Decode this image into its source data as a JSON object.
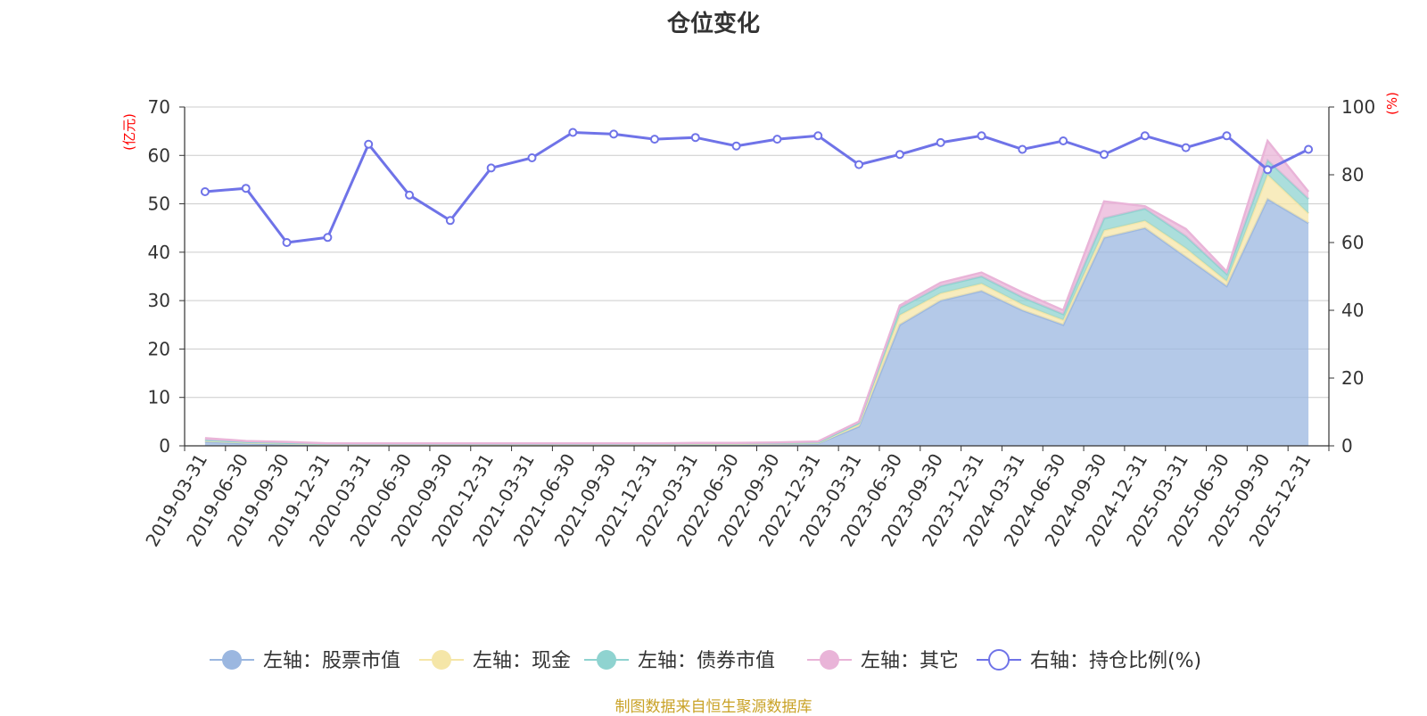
{
  "chart_data": {
    "type": "area",
    "title": "仓位变化",
    "left_axis_unit": "(亿元)",
    "right_axis_unit": "(%)",
    "ylim_left": [
      0,
      70
    ],
    "ylim_right": [
      0,
      100
    ],
    "yticks_left": [
      0,
      10,
      20,
      30,
      40,
      50,
      60,
      70
    ],
    "yticks_right": [
      0,
      20,
      40,
      60,
      80,
      100
    ],
    "grid": true,
    "legend_position": "bottom",
    "categories": [
      "2019-03-31",
      "2019-06-30",
      "2019-09-30",
      "2019-12-31",
      "2020-03-31",
      "2020-06-30",
      "2020-09-30",
      "2020-12-31",
      "2021-03-31",
      "2021-06-30",
      "2021-09-30",
      "2021-12-31",
      "2022-03-31",
      "2022-06-30",
      "2022-09-30",
      "2022-12-31",
      "2023-03-31",
      "2023-06-30",
      "2023-09-30",
      "2023-12-31",
      "2024-03-31",
      "2024-06-30",
      "2024-09-30",
      "2024-12-31",
      "2025-03-31",
      "2025-06-30",
      "2025-09-30",
      "2025-12-31"
    ],
    "series": [
      {
        "name": "左轴：股票市值",
        "axis": "left",
        "kind": "area",
        "color": "#9bb7e0",
        "values": [
          0.8,
          0.5,
          0.3,
          0.2,
          0.2,
          0.2,
          0.2,
          0.2,
          0.2,
          0.2,
          0.2,
          0.2,
          0.3,
          0.3,
          0.4,
          0.5,
          4,
          25,
          30,
          32,
          28,
          25,
          43,
          45,
          39,
          33,
          51,
          46
        ]
      },
      {
        "name": "左轴：现金",
        "axis": "left",
        "kind": "area",
        "color": "#f5e6a8",
        "values": [
          0.3,
          0.2,
          0.2,
          0.1,
          0.1,
          0.1,
          0.1,
          0.1,
          0.1,
          0.1,
          0.1,
          0.1,
          0.1,
          0.1,
          0.1,
          0.1,
          0.4,
          2,
          1.5,
          1.5,
          1.2,
          1.0,
          1.5,
          1.5,
          1.8,
          1.0,
          5,
          2
        ]
      },
      {
        "name": "左轴：债券市值",
        "axis": "left",
        "kind": "area",
        "color": "#8fd3d0",
        "values": [
          0.1,
          0.1,
          0.1,
          0.1,
          0.1,
          0.1,
          0.1,
          0.1,
          0.1,
          0.1,
          0.1,
          0.1,
          0.1,
          0.1,
          0.1,
          0.1,
          0.3,
          1.5,
          1.5,
          1.5,
          1.5,
          1.2,
          2.5,
          2.5,
          2.5,
          1.5,
          3,
          3
        ]
      },
      {
        "name": "左轴：其它",
        "axis": "left",
        "kind": "area",
        "color": "#e9b4d8",
        "values": [
          0.4,
          0.2,
          0.2,
          0.1,
          0.1,
          0.1,
          0.1,
          0.1,
          0.1,
          0.1,
          0.1,
          0.1,
          0.1,
          0.1,
          0.1,
          0.2,
          0.3,
          0.5,
          0.7,
          0.8,
          1.0,
          0.8,
          3.5,
          0.5,
          1.5,
          0.5,
          4,
          1.5
        ]
      },
      {
        "name": "右轴：持仓比例(%)",
        "axis": "right",
        "kind": "line",
        "color": "#6f73e8",
        "values": [
          75,
          76,
          60,
          61.5,
          89,
          74,
          66.5,
          82,
          85,
          92.5,
          92,
          90.5,
          91,
          88.5,
          90.5,
          91.5,
          83,
          86,
          89.5,
          91.5,
          87.5,
          90,
          86,
          91.5,
          88,
          91.5,
          81.5,
          87.5
        ]
      }
    ]
  },
  "source_text": "制图数据来自恒生聚源数据库"
}
